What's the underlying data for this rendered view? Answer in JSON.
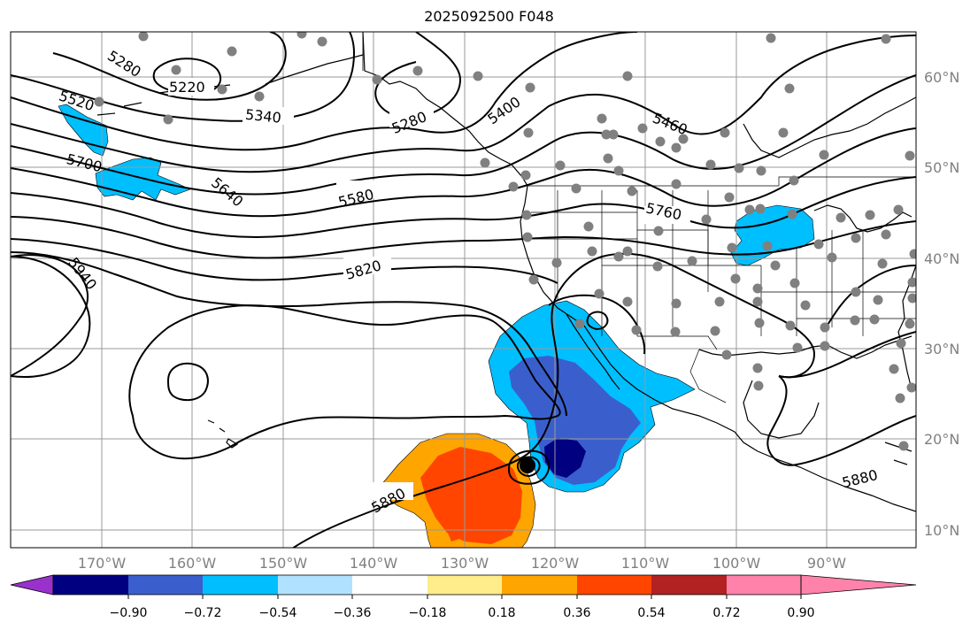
{
  "title": "2025092500 F048",
  "map": {
    "lon_range": [
      -180,
      -80
    ],
    "lat_range": [
      8,
      65
    ],
    "lon_ticks": [
      "170°W",
      "160°W",
      "150°W",
      "140°W",
      "130°W",
      "120°W",
      "110°W",
      "100°W",
      "90°W"
    ],
    "lat_ticks": [
      "10°N",
      "20°N",
      "30°N",
      "40°N",
      "50°N",
      "60°N"
    ],
    "gridlines": true,
    "contour_labels": [
      "5220",
      "5280",
      "5520",
      "5700",
      "5640",
      "5340",
      "5280",
      "5400",
      "5460",
      "5580",
      "5760",
      "5820",
      "5940",
      "5880",
      "5880"
    ],
    "colorbar": {
      "tick_labels": [
        "−0.90",
        "−0.72",
        "−0.54",
        "−0.36",
        "−0.18",
        "0.18",
        "0.36",
        "0.54",
        "0.72",
        "0.90"
      ],
      "colors": [
        "#9932cc",
        "#000080",
        "#3a5fcd",
        "#00bfff",
        "#b0e2ff",
        "#ffffff",
        "#ffec8b",
        "#ffa500",
        "#ff4500",
        "#b22222",
        "#ff82ab"
      ],
      "extend": "both"
    }
  }
}
